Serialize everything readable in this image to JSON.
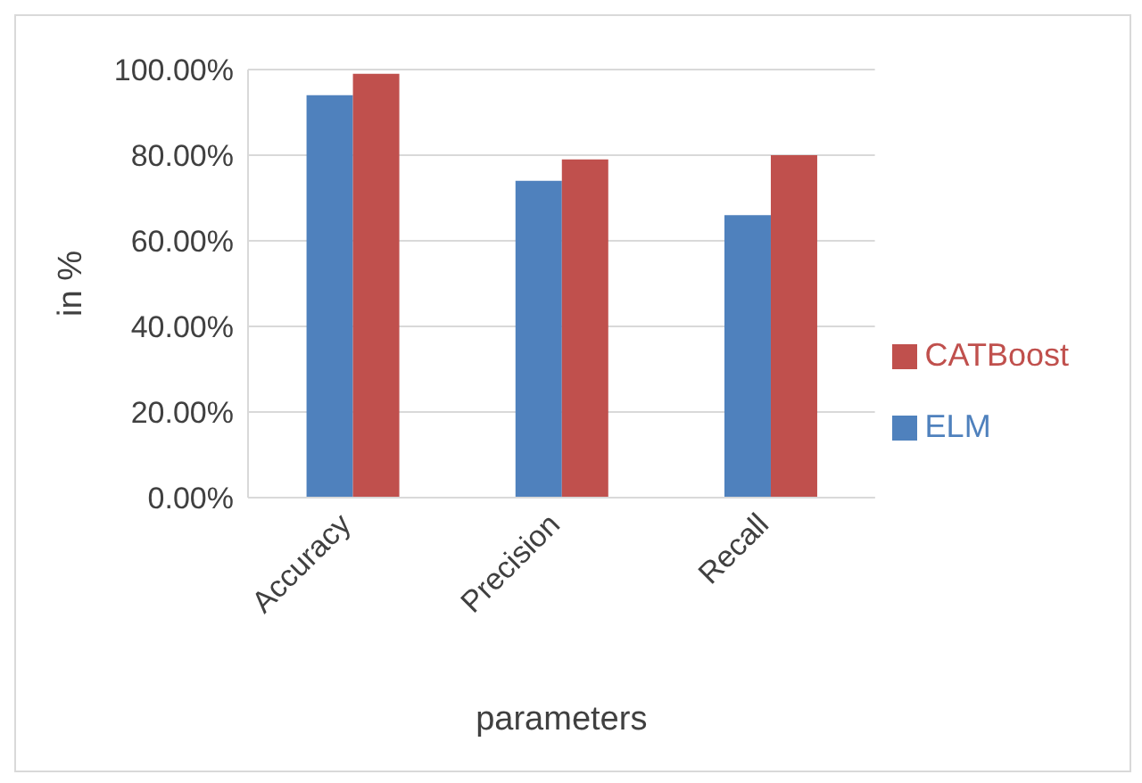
{
  "chart_data": {
    "type": "bar",
    "categories": [
      "Accuracy",
      "Precision",
      "Recall"
    ],
    "series": [
      {
        "name": "ELM",
        "color": "#4f81bd",
        "values": [
          94,
          74,
          66
        ]
      },
      {
        "name": "CATBoost",
        "color": "#c0504d",
        "values": [
          99,
          79,
          80
        ]
      }
    ],
    "ylabel": "in %",
    "xlabel": "parameters",
    "ylim": [
      0,
      100
    ],
    "yticks": [
      {
        "value": 0,
        "label": "0.00%"
      },
      {
        "value": 20,
        "label": "20.00%"
      },
      {
        "value": 40,
        "label": "40.00%"
      },
      {
        "value": 60,
        "label": "60.00%"
      },
      {
        "value": 80,
        "label": "80.00%"
      },
      {
        "value": 100,
        "label": "100.00%"
      }
    ],
    "grid": "y",
    "legend": "right"
  }
}
